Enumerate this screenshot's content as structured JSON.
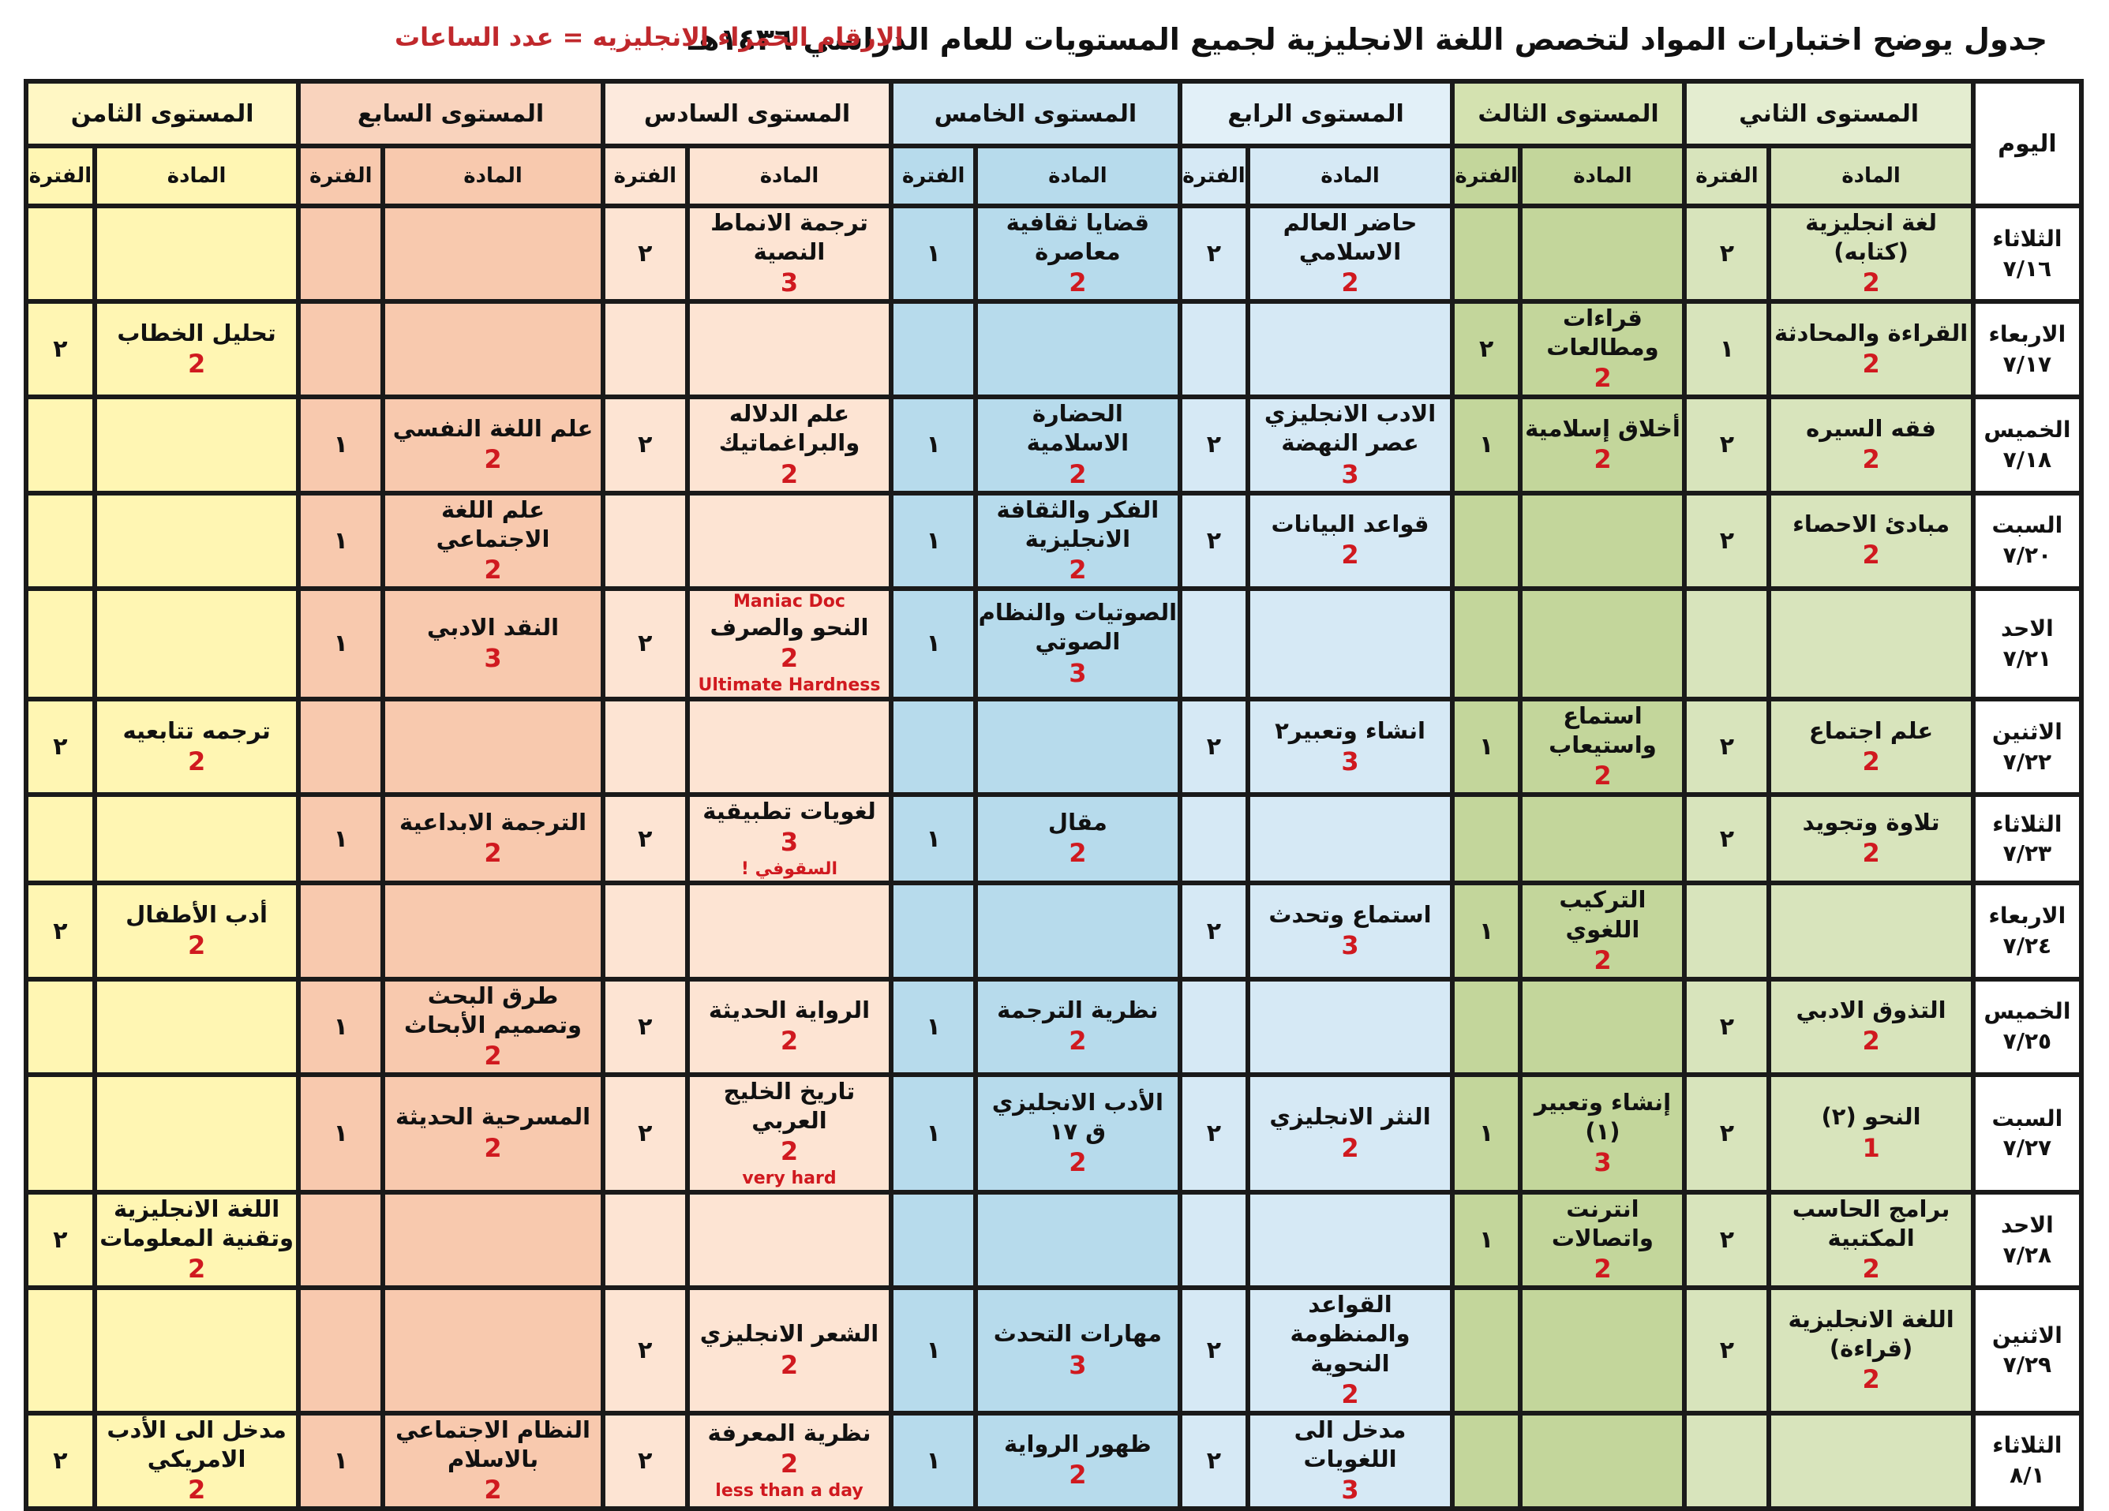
{
  "title": "جدول يوضح اختبارات المواد لتخصص اللغة الانجليزية لجميع المستويات للعام الدراسي ١٤٣٦هـ",
  "note": "الارقام الحمراء الانجليزيه = عدد الساعات",
  "headers": {
    "day": "اليوم",
    "subject": "المادة",
    "period": "الفترة",
    "levels": [
      "المستوى الثاني",
      "المستوى الثالث",
      "المستوى الرابع",
      "المستوى الخامس",
      "المستوى السادس",
      "المستوى السابع",
      "المستوى الثامن"
    ]
  },
  "colors": {
    "level2": "#d8e4bc",
    "level3": "#c3d69b",
    "level4": "#d6e9f5",
    "level5": "#b7dbec",
    "level6": "#fde4d3",
    "level7": "#f8c9ae",
    "level8": "#fff6b3",
    "hours_red": "#d0191f"
  },
  "rows": [
    {
      "day": "الثلاثاء",
      "date": "٧/١٦",
      "cells": [
        {
          "s": "لغة انجليزية (كتابه)",
          "h": "2",
          "p": "٢"
        },
        {
          "s": "",
          "h": "",
          "p": ""
        },
        {
          "s": "حاضر العالم الاسلامي",
          "h": "2",
          "p": "٢"
        },
        {
          "s": "قضايا ثقافية معاصرة",
          "h": "2",
          "p": "١"
        },
        {
          "s": "ترجمة الانماط النصية",
          "h": "3",
          "p": "٢"
        },
        {
          "s": "",
          "h": "",
          "p": ""
        },
        {
          "s": "",
          "h": "",
          "p": ""
        }
      ]
    },
    {
      "day": "الاربعاء",
      "date": "٧/١٧",
      "cells": [
        {
          "s": "القراءة والمحادثة",
          "h": "2",
          "p": "١"
        },
        {
          "s": "قراءات ومطالعات",
          "h": "2",
          "p": "٢"
        },
        {
          "s": "",
          "h": "",
          "p": ""
        },
        {
          "s": "",
          "h": "",
          "p": ""
        },
        {
          "s": "",
          "h": "",
          "p": ""
        },
        {
          "s": "",
          "h": "",
          "p": ""
        },
        {
          "s": "تحليل الخطاب",
          "h": "2",
          "p": "٢"
        }
      ]
    },
    {
      "day": "الخميس",
      "date": "٧/١٨",
      "cells": [
        {
          "s": "فقه السيره",
          "h": "2",
          "p": "٢"
        },
        {
          "s": "أخلاق إسلامية",
          "h": "2",
          "p": "١"
        },
        {
          "s": "الادب الانجليزي عصر النهضة",
          "h": "3",
          "p": "٢"
        },
        {
          "s": "الحضارة الاسلامية",
          "h": "2",
          "p": "١"
        },
        {
          "s": "علم الدلاله والبراغماتيك",
          "h": "2",
          "p": "٢"
        },
        {
          "s": "علم اللغة النفسي",
          "h": "2",
          "p": "١"
        },
        {
          "s": "",
          "h": "",
          "p": ""
        }
      ]
    },
    {
      "day": "السبت",
      "date": "٧/٢٠",
      "cells": [
        {
          "s": "مبادئ الاحصاء",
          "h": "2",
          "p": "٢"
        },
        {
          "s": "",
          "h": "",
          "p": ""
        },
        {
          "s": "قواعد البيانات",
          "h": "2",
          "p": "٢"
        },
        {
          "s": "الفكر والثقافة الانجليزية",
          "h": "2",
          "p": "١"
        },
        {
          "s": "",
          "h": "",
          "p": ""
        },
        {
          "s": "علم اللغة الاجتماعي",
          "h": "2",
          "p": "١"
        },
        {
          "s": "",
          "h": "",
          "p": ""
        }
      ]
    },
    {
      "day": "الاحد",
      "date": "٧/٢١",
      "cells": [
        {
          "s": "",
          "h": "",
          "p": ""
        },
        {
          "s": "",
          "h": "",
          "p": ""
        },
        {
          "s": "",
          "h": "",
          "p": ""
        },
        {
          "s": "الصوتيات والنظام الصوتي",
          "h": "3",
          "p": "١"
        },
        {
          "s": "النحو والصرف",
          "h": "2",
          "p": "٢",
          "a1": "Maniac Doc",
          "a2": "Ultimate Hardness"
        },
        {
          "s": "النقد الادبي",
          "h": "3",
          "p": "١"
        },
        {
          "s": "",
          "h": "",
          "p": ""
        }
      ]
    },
    {
      "day": "الاثنين",
      "date": "٧/٢٢",
      "cells": [
        {
          "s": "علم اجتماع",
          "h": "2",
          "p": "٢"
        },
        {
          "s": "استماع واستيعاب",
          "h": "2",
          "p": "١"
        },
        {
          "s": "انشاء وتعبير٢",
          "h": "3",
          "p": "٢"
        },
        {
          "s": "",
          "h": "",
          "p": ""
        },
        {
          "s": "",
          "h": "",
          "p": ""
        },
        {
          "s": "",
          "h": "",
          "p": ""
        },
        {
          "s": "ترجمه تتابعيه",
          "h": "2",
          "p": "٢"
        }
      ]
    },
    {
      "day": "الثلاثاء",
      "date": "٧/٢٣",
      "cells": [
        {
          "s": "تلاوة وتجويد",
          "h": "2",
          "p": "٢"
        },
        {
          "s": "",
          "h": "",
          "p": ""
        },
        {
          "s": "",
          "h": "",
          "p": ""
        },
        {
          "s": "مقال",
          "h": "2",
          "p": "١"
        },
        {
          "s": "لغويات تطبيقية",
          "h": "3",
          "p": "٢",
          "a3": "السقوفي !"
        },
        {
          "s": "الترجمة الابداعية",
          "h": "2",
          "p": "١"
        },
        {
          "s": "",
          "h": "",
          "p": ""
        }
      ]
    },
    {
      "day": "الاربعاء",
      "date": "٧/٢٤",
      "cells": [
        {
          "s": "",
          "h": "",
          "p": ""
        },
        {
          "s": "التركيب اللغوي",
          "h": "2",
          "p": "١"
        },
        {
          "s": "استماع وتحدث",
          "h": "3",
          "p": "٢"
        },
        {
          "s": "",
          "h": "",
          "p": ""
        },
        {
          "s": "",
          "h": "",
          "p": ""
        },
        {
          "s": "",
          "h": "",
          "p": ""
        },
        {
          "s": "أدب الأطفال",
          "h": "2",
          "p": "٢"
        }
      ]
    },
    {
      "day": "الخميس",
      "date": "٧/٢٥",
      "cells": [
        {
          "s": "التذوق الادبي",
          "h": "2",
          "p": "٢"
        },
        {
          "s": "",
          "h": "",
          "p": ""
        },
        {
          "s": "",
          "h": "",
          "p": ""
        },
        {
          "s": "نظرية الترجمة",
          "h": "2",
          "p": "١"
        },
        {
          "s": "الرواية الحديثة",
          "h": "2",
          "p": "٢"
        },
        {
          "s": "طرق البحث وتصميم الأبحاث",
          "h": "2",
          "p": "١"
        },
        {
          "s": "",
          "h": "",
          "p": ""
        }
      ]
    },
    {
      "day": "السبت",
      "date": "٧/٢٧",
      "cells": [
        {
          "s": "النحو (٢)",
          "h": "1",
          "p": "٢"
        },
        {
          "s": "إنشاء وتعبير (١)",
          "h": "3",
          "p": "١"
        },
        {
          "s": "النثر الانجليزي",
          "h": "2",
          "p": "٢"
        },
        {
          "s": "الأدب الانجليزي ق ١٧",
          "h": "2",
          "p": "١"
        },
        {
          "s": "تاريخ الخليج العربي",
          "h": "2",
          "p": "٢",
          "a2": "very hard"
        },
        {
          "s": "المسرحية الحديثة",
          "h": "2",
          "p": "١"
        },
        {
          "s": "",
          "h": "",
          "p": ""
        }
      ]
    },
    {
      "day": "الاحد",
      "date": "٧/٢٨",
      "cells": [
        {
          "s": "برامج الحاسب المكتبية",
          "h": "2",
          "p": "٢"
        },
        {
          "s": "انترنت واتصالات",
          "h": "2",
          "p": "١"
        },
        {
          "s": "",
          "h": "",
          "p": ""
        },
        {
          "s": "",
          "h": "",
          "p": ""
        },
        {
          "s": "",
          "h": "",
          "p": ""
        },
        {
          "s": "",
          "h": "",
          "p": ""
        },
        {
          "s": "اللغة الانجليزية وتقنية المعلومات",
          "h": "2",
          "p": "٢"
        }
      ]
    },
    {
      "day": "الاثنين",
      "date": "٧/٢٩",
      "cells": [
        {
          "s": "اللغة الانجليزية (قراءة)",
          "h": "2",
          "p": "٢"
        },
        {
          "s": "",
          "h": "",
          "p": ""
        },
        {
          "s": "القواعد والمنظومة النحوية",
          "h": "2",
          "p": "٢"
        },
        {
          "s": "مهارات التحدث",
          "h": "3",
          "p": "١"
        },
        {
          "s": "الشعر الانجليزي",
          "h": "2",
          "p": "٢"
        },
        {
          "s": "",
          "h": "",
          "p": ""
        },
        {
          "s": "",
          "h": "",
          "p": ""
        }
      ]
    },
    {
      "day": "الثلاثاء",
      "date": "٨/١",
      "cells": [
        {
          "s": "",
          "h": "",
          "p": ""
        },
        {
          "s": "",
          "h": "",
          "p": ""
        },
        {
          "s": "مدخل الى اللغويات",
          "h": "3",
          "p": "٢"
        },
        {
          "s": "ظهور الرواية",
          "h": "2",
          "p": "١"
        },
        {
          "s": "نظرية المعرفة",
          "h": "2",
          "p": "٢",
          "a2": "less than a day"
        },
        {
          "s": "النظام الاجتماعي بالاسلام",
          "h": "2",
          "p": "١"
        },
        {
          "s": "مدخل الى الأدب الامريكي",
          "h": "2",
          "p": "٢"
        }
      ]
    }
  ]
}
